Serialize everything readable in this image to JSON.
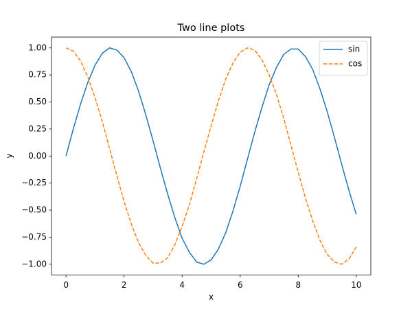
{
  "chart_data": {
    "type": "line",
    "title": "Two line plots",
    "x_label": "x",
    "y_label": "y",
    "x": [
      0,
      0.25,
      0.5,
      0.75,
      1,
      1.25,
      1.5,
      1.75,
      2,
      2.25,
      2.5,
      2.75,
      3,
      3.25,
      3.5,
      3.75,
      4,
      4.25,
      4.5,
      4.75,
      5,
      5.25,
      5.5,
      5.75,
      6,
      6.25,
      6.5,
      6.75,
      7,
      7.25,
      7.5,
      7.75,
      8,
      8.25,
      8.5,
      8.75,
      9,
      9.25,
      9.5,
      9.75,
      10
    ],
    "series": [
      {
        "name": "sin",
        "color": "#1f77b4",
        "style": "solid",
        "values": [
          0,
          0.25,
          0.48,
          0.68,
          0.84,
          0.95,
          1.0,
          0.98,
          0.91,
          0.78,
          0.6,
          0.38,
          0.14,
          -0.11,
          -0.35,
          -0.57,
          -0.76,
          -0.89,
          -0.98,
          -1.0,
          -0.96,
          -0.86,
          -0.71,
          -0.51,
          -0.28,
          -0.03,
          0.22,
          0.45,
          0.66,
          0.82,
          0.94,
          0.99,
          0.99,
          0.92,
          0.8,
          0.62,
          0.41,
          0.17,
          -0.08,
          -0.32,
          -0.54
        ]
      },
      {
        "name": "cos",
        "color": "#ff7f0e",
        "style": "dashed",
        "values": [
          1,
          0.97,
          0.88,
          0.73,
          0.54,
          0.32,
          0.07,
          -0.18,
          -0.42,
          -0.63,
          -0.8,
          -0.92,
          -0.99,
          -0.99,
          -0.94,
          -0.82,
          -0.65,
          -0.45,
          -0.21,
          0.04,
          0.28,
          0.51,
          0.71,
          0.86,
          0.96,
          1.0,
          0.98,
          0.89,
          0.75,
          0.57,
          0.35,
          0.1,
          -0.15,
          -0.39,
          -0.6,
          -0.78,
          -0.91,
          -0.98,
          -1.0,
          -0.95,
          -0.84
        ]
      }
    ],
    "xlim": [
      -0.5,
      10.5
    ],
    "ylim": [
      -1.1,
      1.1
    ],
    "xticks": [
      0,
      2,
      4,
      6,
      8,
      10
    ],
    "yticks": [
      {
        "value": -1,
        "label": "−1.00"
      },
      {
        "value": -0.75,
        "label": "−0.75"
      },
      {
        "value": -0.5,
        "label": "−0.50"
      },
      {
        "value": -0.25,
        "label": "−0.25"
      },
      {
        "value": 0,
        "label": "0.00"
      },
      {
        "value": 0.25,
        "label": "0.25"
      },
      {
        "value": 0.5,
        "label": "0.50"
      },
      {
        "value": 0.75,
        "label": "0.75"
      },
      {
        "value": 1,
        "label": "1.00"
      }
    ],
    "grid": false,
    "legend": "upper right"
  }
}
